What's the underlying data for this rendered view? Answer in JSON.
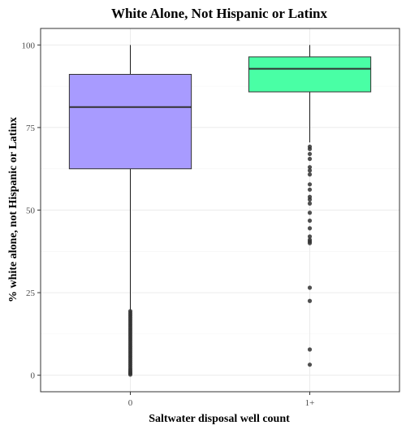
{
  "chart_data": {
    "type": "box",
    "title": "White Alone, Not Hispanic or Latinx",
    "xlabel": "Saltwater disposal well count",
    "ylabel": "% white alone, not Hispanic or Latinx",
    "ylim": [
      -5,
      105
    ],
    "yticks": [
      0,
      25,
      50,
      75,
      100
    ],
    "grid": true,
    "categories": [
      "0",
      "1+"
    ],
    "boxes": [
      {
        "category": "0",
        "color": "#a89bff",
        "min": 0,
        "q1": 62.5,
        "median": 81.2,
        "q3": 91.1,
        "max": 100,
        "outliers": [
          0.2,
          0.6,
          1.0,
          1.5,
          2.0,
          2.6,
          3.2,
          3.8,
          4.4,
          5.0,
          5.6,
          6.2,
          6.8,
          7.4,
          8.0,
          8.6,
          9.2,
          9.8,
          10.4,
          11.0,
          11.6,
          12.2,
          12.8,
          13.4,
          14.0,
          14.6,
          15.2,
          15.8,
          16.4,
          17.0,
          17.6,
          18.2,
          18.8,
          19.4
        ]
      },
      {
        "category": "1+",
        "color": "#49ffa5",
        "min": 70.5,
        "q1": 85.8,
        "median": 92.8,
        "q3": 96.4,
        "max": 100,
        "outliers": [
          69.2,
          68.5,
          67.0,
          65.5,
          63.0,
          62.0,
          60.8,
          57.8,
          56.2,
          54.0,
          53.2,
          52.0,
          49.2,
          46.8,
          44.5,
          42.0,
          41.0,
          40.5,
          40.0,
          26.5,
          22.5,
          7.8,
          3.2
        ]
      }
    ]
  }
}
